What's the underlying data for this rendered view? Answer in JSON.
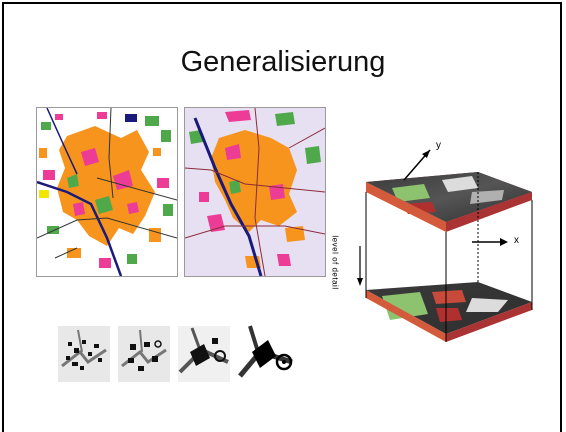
{
  "slide": {
    "title": "Generalisierung"
  },
  "figure_3d": {
    "axis_y": "y",
    "axis_x": "x",
    "vertical_axis": "level of detail"
  },
  "colors": {
    "urban_orange": "#f7941d",
    "magenta": "#ec3c95",
    "green": "#4fa84a",
    "navy_road": "#1a1a7a",
    "red_street": "#c0392b"
  }
}
